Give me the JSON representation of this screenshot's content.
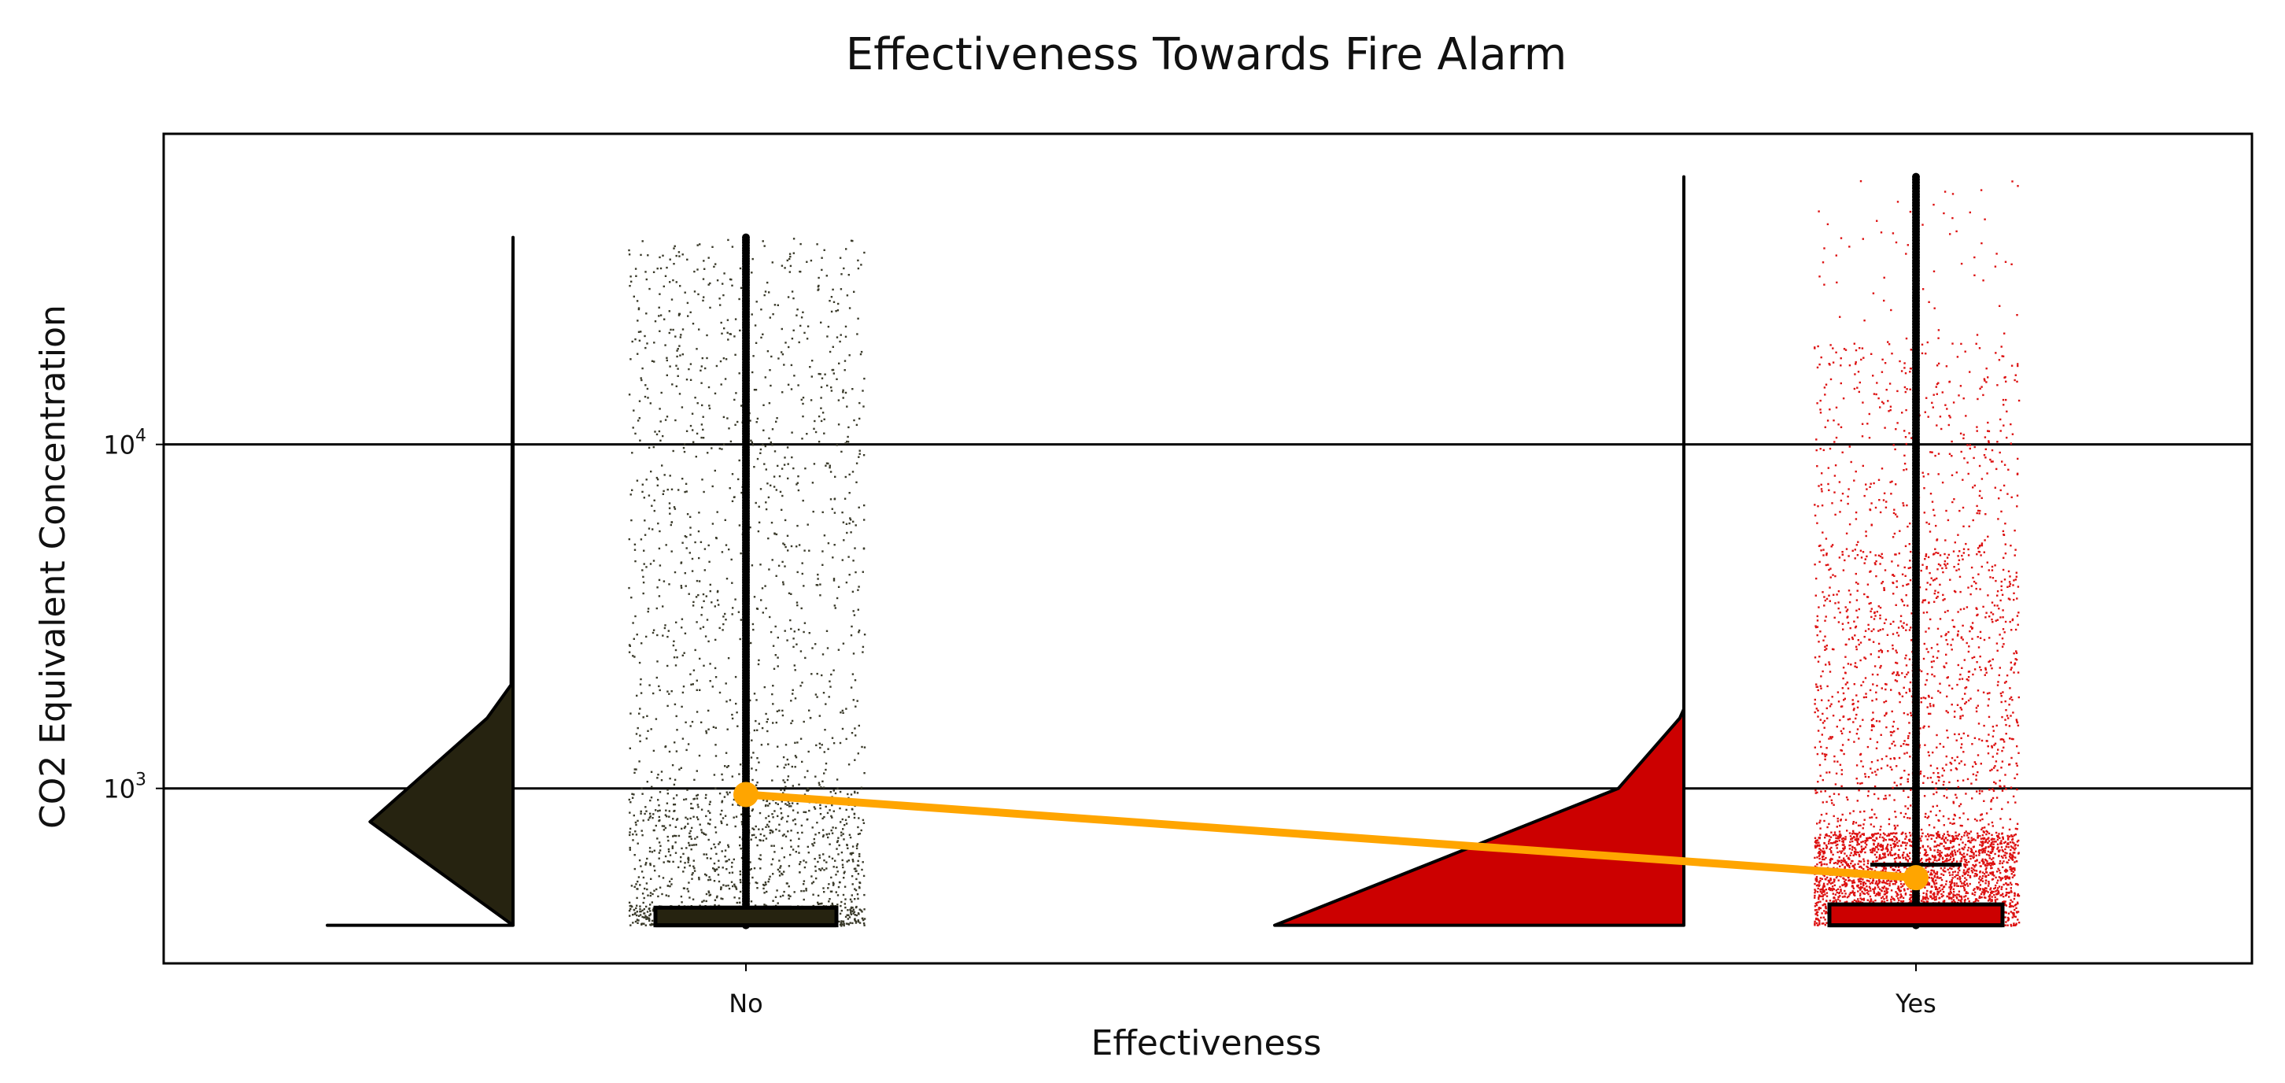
{
  "chart_data": {
    "type": "raincloud",
    "title": "Effectiveness Towards Fire Alarm",
    "xlabel": "Effectiveness",
    "ylabel": "CO2 Equivalent Concentration",
    "y_scale": "log",
    "ylim": [
      310,
      80000
    ],
    "y_ticks": [
      {
        "value": 1000,
        "base": "10",
        "exp": "3"
      },
      {
        "value": 10000,
        "base": "10",
        "exp": "4"
      }
    ],
    "grid": "horizontal",
    "categories": [
      "No",
      "Yes"
    ],
    "series": [
      {
        "category": "No",
        "color": "#262310",
        "points_color": "#3a3a2a",
        "min": 400,
        "max": 40000,
        "median": 400,
        "q1": 400,
        "q3": 450,
        "whisker_high": 450,
        "mean": 960,
        "density": [
          [
            400,
            0
          ],
          [
            800,
            0.77
          ],
          [
            1600,
            0.14
          ],
          [
            2000,
            0.01
          ],
          [
            40000,
            0
          ]
        ]
      },
      {
        "category": "Yes",
        "color": "#cc0000",
        "points_color": "#dd1111",
        "min": 400,
        "max": 60000,
        "median": 400,
        "q1": 400,
        "q3": 460,
        "whisker_high": 600,
        "mean": 550,
        "density": [
          [
            400,
            1.0
          ],
          [
            1000,
            0.16
          ],
          [
            1600,
            0.01
          ],
          [
            1700,
            0
          ],
          [
            60000,
            0
          ]
        ]
      }
    ],
    "mean_line_color": "#ffa500"
  }
}
